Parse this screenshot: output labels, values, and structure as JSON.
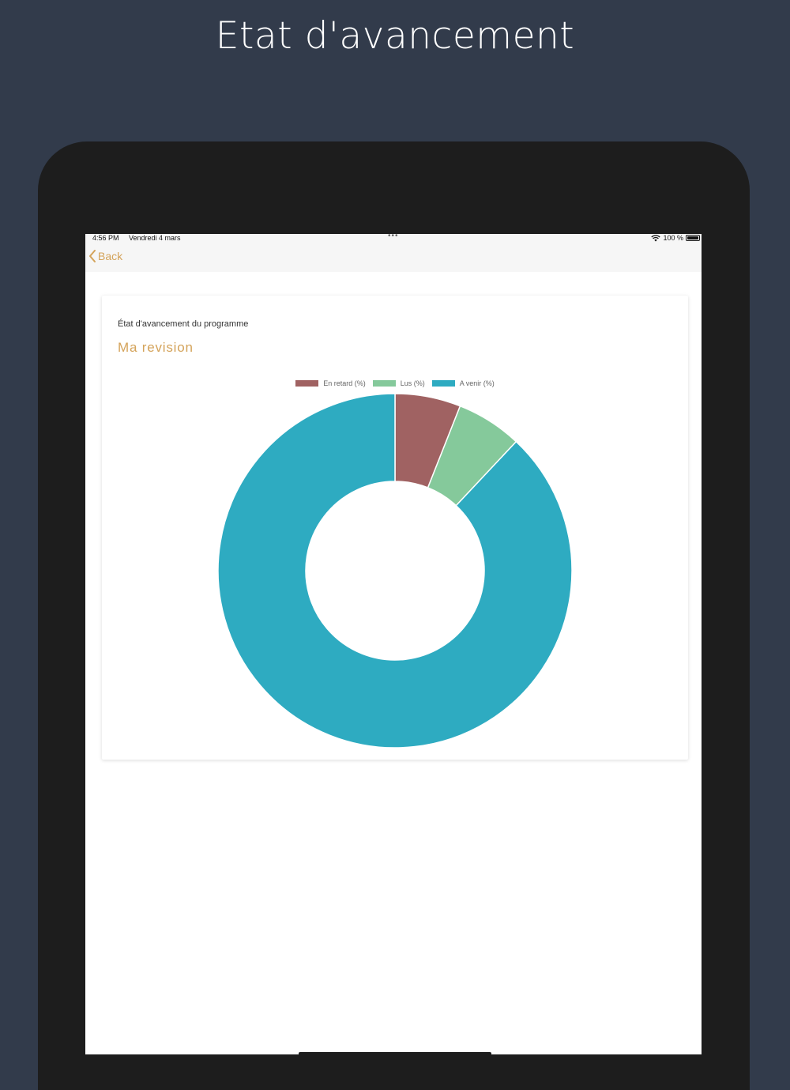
{
  "promo": {
    "title": "Etat d'avancement"
  },
  "status_bar": {
    "time": "4:56 PM",
    "date": "Vendredi 4 mars",
    "battery": "100 %"
  },
  "nav": {
    "back_label": "Back"
  },
  "card": {
    "subtitle": "État d'avancement du programme",
    "title": "Ma revision"
  },
  "colors": {
    "accent": "#d4a35a",
    "background": "#323b4b",
    "late": "#a06262",
    "read": "#85c99b",
    "upcoming": "#2eabc1"
  },
  "chart_data": {
    "type": "pie",
    "donut": true,
    "legend_position": "top",
    "categories": [
      "En retard (%)",
      "Lus (%)",
      "A venir (%)"
    ],
    "values": [
      6,
      6,
      88
    ],
    "colors": [
      "#a06262",
      "#85c99b",
      "#2eabc1"
    ]
  }
}
